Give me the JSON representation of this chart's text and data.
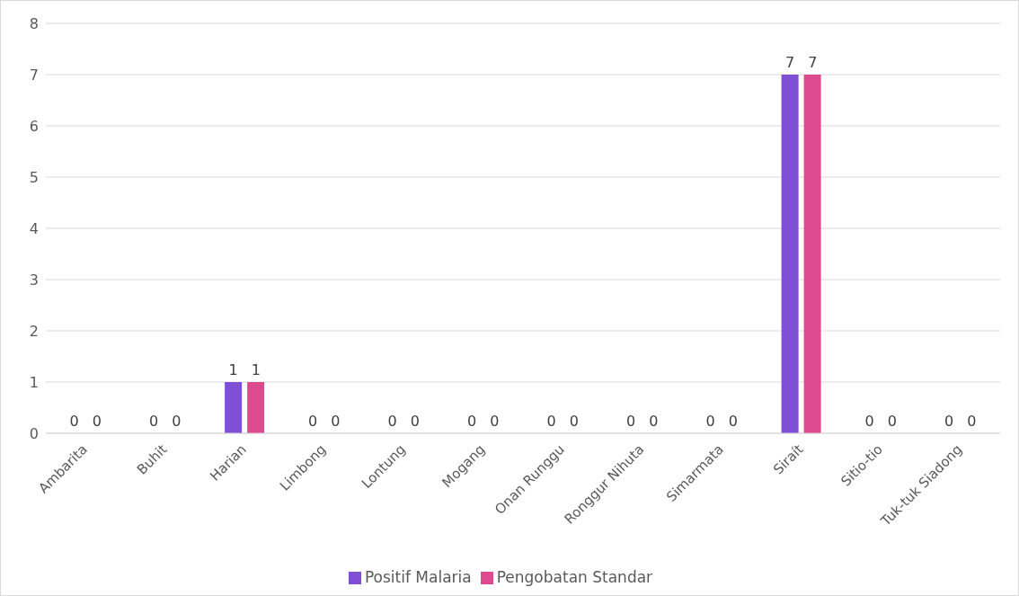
{
  "chart_data": {
    "type": "bar",
    "categories": [
      "Ambarita",
      "Buhit",
      "Harian",
      "Limbong",
      "Lontung",
      "Mogang",
      "Onan Runggu",
      "Ronggur Nihuta",
      "Simarmata",
      "Siraít",
      "Sitio-tio",
      "Tuk-tuk Siadong"
    ],
    "series": [
      {
        "name": "Positif Malaria",
        "color": "#7f4fd6",
        "values": [
          0,
          0,
          1,
          0,
          0,
          0,
          0,
          0,
          0,
          7,
          0,
          0
        ]
      },
      {
        "name": "Pengobatan Standar",
        "color": "#dd4a8f",
        "values": [
          0,
          0,
          1,
          0,
          0,
          0,
          0,
          0,
          0,
          7,
          0,
          0
        ]
      }
    ],
    "ylim": [
      0,
      8
    ],
    "yticks": [
      0,
      1,
      2,
      3,
      4,
      5,
      6,
      7,
      8
    ],
    "grid": "y",
    "legend": "bottom",
    "data_labels": true
  }
}
